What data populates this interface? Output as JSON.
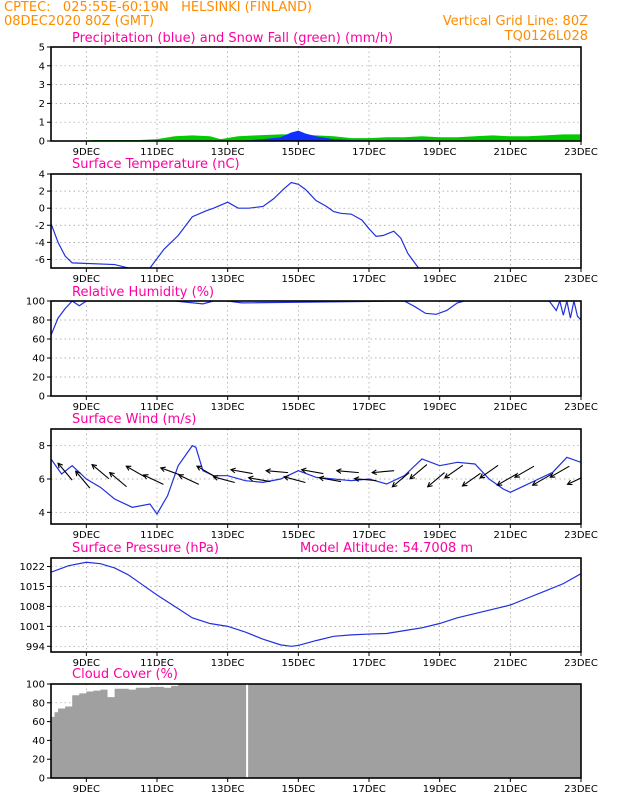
{
  "header": {
    "left_line1": "CPTEC:   025:55E-60:19N   HELSINKI (FINLAND)",
    "left_line2": "08DEC2020 80Z (GMT)",
    "right_line1": "Vertical Grid Line: 80Z",
    "right_line2": "TQ0126L028"
  },
  "colors": {
    "header": "#ff8c00",
    "title": "#ff00a0",
    "line": "#2030e0",
    "snow": "#00cc00",
    "precip": "#1030ff",
    "cloud": "#a0a0a0",
    "arrow": "#000000"
  },
  "x_axis": {
    "ticks": [
      "9DEC",
      "11DEC",
      "13DEC",
      "15DEC",
      "17DEC",
      "19DEC",
      "21DEC",
      "23DEC"
    ],
    "tick_days": [
      9,
      11,
      13,
      15,
      17,
      19,
      21,
      23
    ],
    "range_days": [
      8,
      23
    ]
  },
  "chart_data": [
    {
      "type": "area",
      "title": "Precipitation (blue) and Snow Fall (green) (mm/h)",
      "ylim": [
        0,
        5
      ],
      "yticks": [
        0,
        1,
        2,
        3,
        4,
        5
      ],
      "grid": true,
      "series": [
        {
          "name": "Precipitation",
          "color": "#1030ff",
          "x": [
            8.0,
            13.3,
            14.0,
            14.5,
            14.8,
            15.0,
            15.2,
            15.5,
            16.0,
            16.5,
            17.0,
            18.5,
            19.0,
            23.0
          ],
          "y": [
            0,
            0,
            0.1,
            0.2,
            0.45,
            0.55,
            0.4,
            0.25,
            0.1,
            0.05,
            0.03,
            0.05,
            0.02,
            0
          ]
        },
        {
          "name": "Snow Fall",
          "color": "#00cc00",
          "x": [
            8.0,
            8.8,
            9.2,
            10.5,
            11.0,
            11.5,
            12.0,
            12.5,
            12.8,
            13.3,
            13.8,
            14.5,
            15.0,
            15.5,
            16.0,
            16.5,
            17.0,
            17.5,
            18.0,
            18.5,
            19.0,
            19.5,
            20.0,
            20.5,
            21.0,
            21.5,
            22.0,
            22.5,
            23.0
          ],
          "y": [
            0,
            0,
            0.05,
            0.05,
            0.1,
            0.25,
            0.3,
            0.25,
            0.1,
            0.25,
            0.3,
            0.35,
            0.35,
            0.3,
            0.25,
            0.15,
            0.15,
            0.2,
            0.2,
            0.25,
            0.2,
            0.2,
            0.25,
            0.3,
            0.25,
            0.25,
            0.3,
            0.35,
            0.35
          ]
        }
      ]
    },
    {
      "type": "line",
      "title": "Surface Temperature (nC)",
      "ylim": [
        -7,
        4
      ],
      "yticks": [
        4,
        2,
        0,
        -2,
        -4,
        -6
      ],
      "grid": true,
      "series": [
        {
          "name": "Temperature",
          "color": "#2030e0",
          "x": [
            8.0,
            8.2,
            8.4,
            8.6,
            9.8,
            10.2,
            10.8,
            11.2,
            11.6,
            12.0,
            12.4,
            12.6,
            13.0,
            13.3,
            13.6,
            14.0,
            14.3,
            14.6,
            14.8,
            15.0,
            15.2,
            15.5,
            15.8,
            16.0,
            16.2,
            16.5,
            16.8,
            17.0,
            17.2,
            17.4,
            17.7,
            17.9,
            18.1,
            18.4
          ],
          "y": [
            -1.8,
            -4.0,
            -5.6,
            -6.4,
            -6.6,
            -7.0,
            -7.0,
            -4.8,
            -3.2,
            -1.0,
            -0.3,
            0.0,
            0.7,
            0.0,
            0.0,
            0.2,
            1.1,
            2.3,
            3.0,
            2.8,
            2.2,
            0.9,
            0.2,
            -0.4,
            -0.6,
            -0.7,
            -1.4,
            -2.4,
            -3.3,
            -3.2,
            -2.7,
            -3.5,
            -5.3,
            -7.0
          ]
        }
      ]
    },
    {
      "type": "line",
      "title": "Relative Humidity (%)",
      "ylim": [
        0,
        100
      ],
      "yticks": [
        100,
        80,
        60,
        40,
        20,
        0
      ],
      "grid": true,
      "series": [
        {
          "name": "Relative Humidity",
          "color": "#2030e0",
          "x": [
            8.0,
            8.2,
            8.4,
            8.6,
            8.8,
            9.0,
            11.5,
            12.3,
            12.6,
            13.0,
            13.4,
            18.0,
            18.3,
            18.6,
            18.9,
            19.2,
            19.5,
            19.7,
            20.0,
            22.1,
            22.3,
            22.4,
            22.5,
            22.6,
            22.7,
            22.8,
            22.9,
            23.0
          ],
          "y": [
            64,
            82,
            92,
            100,
            95,
            100,
            100,
            97,
            100,
            100,
            98,
            100,
            94,
            87,
            86,
            90,
            98,
            100,
            100,
            100,
            90,
            100,
            85,
            100,
            82,
            100,
            84,
            80
          ]
        }
      ]
    },
    {
      "type": "line",
      "title": "Surface Wind (m/s)",
      "ylim": [
        3.3,
        9.0
      ],
      "yticks": [
        8,
        6,
        4
      ],
      "grid": true,
      "series": [
        {
          "name": "Wind Speed",
          "color": "#2030e0",
          "x": [
            8.0,
            8.3,
            8.6,
            9.0,
            9.4,
            9.8,
            10.3,
            10.8,
            11.0,
            11.3,
            11.6,
            12.0,
            12.1,
            12.3,
            12.6,
            13.0,
            13.5,
            14.0,
            14.5,
            15.0,
            15.5,
            16.0,
            16.5,
            17.0,
            17.5,
            18.0,
            18.5,
            19.0,
            19.5,
            20.0,
            20.4,
            20.8,
            21.0,
            21.4,
            21.8,
            22.2,
            22.6,
            23.0
          ],
          "y": [
            7.2,
            6.3,
            6.8,
            6.0,
            5.5,
            4.8,
            4.3,
            4.5,
            3.9,
            5.0,
            6.8,
            8.0,
            7.9,
            6.5,
            6.2,
            6.2,
            5.9,
            5.8,
            6.0,
            6.5,
            6.1,
            6.0,
            5.9,
            6.0,
            5.7,
            6.2,
            7.2,
            6.8,
            7.0,
            6.9,
            6.0,
            5.4,
            5.2,
            5.6,
            6.0,
            6.4,
            7.3,
            7.0
          ]
        }
      ],
      "arrows": {
        "x": [
          8.4,
          8.9,
          9.4,
          9.9,
          10.4,
          10.9,
          11.4,
          11.9,
          12.4,
          12.9,
          13.4,
          13.9,
          14.4,
          14.9,
          15.4,
          15.9,
          16.4,
          16.9,
          17.4,
          17.9,
          18.4,
          18.9,
          19.4,
          19.9,
          20.4,
          20.9,
          21.4,
          21.9,
          22.4,
          22.9
        ],
        "dir_from_deg": [
          140,
          140,
          130,
          130,
          120,
          115,
          110,
          115,
          120,
          105,
          100,
          100,
          95,
          105,
          100,
          100,
          95,
          95,
          85,
          50,
          50,
          50,
          55,
          55,
          55,
          60,
          60,
          60,
          60,
          65
        ]
      }
    },
    {
      "type": "line",
      "title": "Surface Pressure (hPa)",
      "annotation": "Model Altitude: 54.7008 m",
      "ylim": [
        992,
        1025
      ],
      "yticks": [
        1022,
        1015,
        1008,
        1001,
        994
      ],
      "grid": true,
      "series": [
        {
          "name": "Surface Pressure",
          "color": "#2030e0",
          "x": [
            8.0,
            8.5,
            9.0,
            9.4,
            9.8,
            10.2,
            10.6,
            11.0,
            11.5,
            12.0,
            12.5,
            13.0,
            13.5,
            14.0,
            14.5,
            14.8,
            15.0,
            15.5,
            16.0,
            16.5,
            17.0,
            17.5,
            18.0,
            18.5,
            19.0,
            19.5,
            20.0,
            20.5,
            21.0,
            21.5,
            22.0,
            22.5,
            23.0
          ],
          "y": [
            1020,
            1022.3,
            1023.5,
            1023.0,
            1021.5,
            1019,
            1015.5,
            1012,
            1008,
            1004,
            1002,
            1001,
            999,
            996.5,
            994.5,
            994,
            994.3,
            996,
            997.5,
            998,
            998.3,
            998.5,
            999.5,
            1000.5,
            1002,
            1004,
            1005.5,
            1007,
            1008.5,
            1011,
            1013.5,
            1016,
            1019.5
          ]
        }
      ]
    },
    {
      "type": "bar",
      "title": "Cloud Cover (%)",
      "ylim": [
        0,
        100
      ],
      "yticks": [
        100,
        80,
        60,
        40,
        20,
        0
      ],
      "grid": true,
      "x": [
        8.0,
        8.1,
        8.2,
        8.4,
        8.6,
        8.8,
        9.0,
        9.2,
        9.4,
        9.6,
        9.8,
        10.0,
        10.2,
        10.4,
        10.6,
        10.8,
        11.0,
        11.2,
        11.4,
        11.6,
        11.8,
        12.0,
        23.0
      ],
      "values": [
        65,
        70,
        74,
        76,
        88,
        90,
        92,
        93,
        94,
        86,
        95,
        95,
        94,
        96,
        96,
        97,
        97,
        96,
        98,
        100,
        100,
        100,
        100
      ],
      "gap_days": [
        13.55
      ]
    }
  ]
}
